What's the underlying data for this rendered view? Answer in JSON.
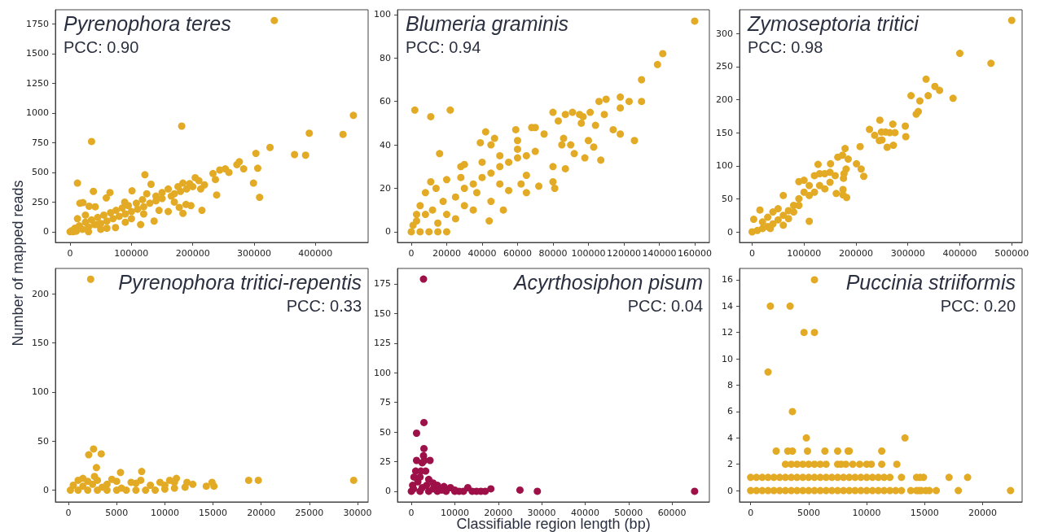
{
  "chart_data": [
    {
      "type": "scatter",
      "title": "Pyrenophora teres",
      "annotations": [
        "PCC: 0.90"
      ],
      "ylabel": "Number of mapped reads",
      "marker": "circle",
      "xlim": [
        -24000,
        486000
      ],
      "ylim": [
        -90,
        1870
      ],
      "xticks": [
        0,
        100000,
        200000,
        300000,
        400000
      ],
      "yticks": [
        0,
        250,
        500,
        750,
        1000,
        1250,
        1500,
        1750
      ],
      "series": [
        {
          "color": "#e3ab25",
          "x": [
            333000,
            182000,
            35000,
            462000,
            390000,
            445000,
            326000,
            303000,
            366000,
            384000,
            276000,
            272000,
            306000,
            283000,
            259000,
            253000,
            244000,
            233000,
            237000,
            299000,
            309000,
            239000,
            215000,
            184000,
            12000,
            38000,
            122000,
            132000,
            101000,
            65000,
            59000,
            16000,
            21000,
            31000,
            41000,
            89000,
            189000,
            197000,
            178000,
            213000,
            219000,
            210000,
            204000,
            195000,
            184000,
            176000,
            160000,
            150000,
            140000,
            125000,
            118000,
            108000,
            95000,
            85000,
            75000,
            66000,
            55000,
            45000,
            35000,
            25000,
            15000,
            8000,
            3000,
            0,
            5000,
            10000,
            20000,
            30000,
            40000,
            50000,
            60000,
            70000,
            80000,
            90000,
            100000,
            110000,
            120000,
            130000,
            140000,
            150000,
            165000,
            170000,
            180000,
            190000,
            200000,
            115000,
            137000,
            74000,
            50000,
            100000,
            160000,
            170000,
            145000,
            90000,
            120000,
            30000,
            60000,
            12000,
            25000,
            45000
          ],
          "values": [
            1780,
            890,
            760,
            980,
            830,
            820,
            710,
            660,
            650,
            645,
            590,
            565,
            535,
            530,
            500,
            530,
            520,
            490,
            440,
            410,
            290,
            310,
            180,
            155,
            410,
            340,
            480,
            400,
            345,
            330,
            285,
            240,
            245,
            215,
            210,
            250,
            230,
            220,
            205,
            360,
            395,
            430,
            455,
            405,
            410,
            380,
            360,
            330,
            300,
            320,
            270,
            240,
            220,
            200,
            180,
            160,
            140,
            120,
            100,
            80,
            50,
            30,
            10,
            0,
            0,
            5,
            20,
            40,
            60,
            70,
            90,
            110,
            130,
            150,
            170,
            190,
            210,
            240,
            260,
            280,
            300,
            320,
            340,
            360,
            380,
            60,
            90,
            35,
            20,
            110,
            170,
            250,
            180,
            80,
            150,
            0,
            30,
            110,
            140,
            60
          ]
        }
      ]
    },
    {
      "type": "scatter",
      "title": "Blumeria graminis",
      "annotations": [
        "PCC: 0.94"
      ],
      "marker": "circle",
      "xlim": [
        -7800,
        168300
      ],
      "ylim": [
        -4.9,
        102.2
      ],
      "xticks": [
        0,
        20000,
        40000,
        60000,
        80000,
        100000,
        120000,
        140000,
        160000
      ],
      "yticks": [
        0,
        20,
        40,
        60,
        80,
        100
      ],
      "series": [
        {
          "color": "#e3ab25",
          "x": [
            160000,
            142000,
            139000,
            130000,
            118000,
            110000,
            106000,
            123000,
            130000,
            118000,
            2000,
            22000,
            11000,
            16000,
            80000,
            91000,
            101000,
            95000,
            87000,
            109000,
            97000,
            83000,
            104000,
            96000,
            114000,
            118000,
            126000,
            107000,
            98000,
            92000,
            85000,
            81000,
            80000,
            72000,
            65000,
            68000,
            70000,
            59000,
            42000,
            47000,
            39000,
            60000,
            75000,
            86000,
            100000,
            103000,
            90000,
            80000,
            87000,
            60000,
            50000,
            40000,
            30000,
            28000,
            20000,
            11000,
            14000,
            8000,
            5000,
            3000,
            1000,
            0,
            5000,
            10000,
            15000,
            20000,
            3000,
            8000,
            12000,
            18000,
            25000,
            30000,
            35000,
            40000,
            45000,
            50000,
            55000,
            60000,
            65000,
            70000,
            25000,
            35000,
            45000,
            55000,
            62000,
            37000,
            50000,
            30000,
            20000,
            44000,
            52000,
            15000,
            28000,
            45000,
            65000
          ],
          "values": [
            97,
            82,
            77,
            70,
            62,
            61,
            60,
            60,
            60,
            57,
            56,
            56,
            53,
            36,
            55,
            55,
            55,
            54,
            54,
            54,
            53,
            51,
            49,
            50,
            47,
            45,
            42,
            33,
            34,
            36,
            40,
            20,
            23,
            21,
            18,
            48,
            48,
            47,
            46,
            43,
            41,
            42,
            45,
            43,
            42,
            39,
            40,
            30,
            29,
            38,
            35,
            32,
            31,
            30,
            24,
            23,
            20,
            18,
            12,
            8,
            3,
            0,
            0,
            0,
            0,
            0,
            5,
            8,
            10,
            14,
            16,
            20,
            22,
            25,
            27,
            30,
            32,
            34,
            35,
            37,
            6,
            10,
            14,
            19,
            22,
            18,
            22,
            12,
            8,
            5,
            10,
            4,
            25,
            40,
            26
          ]
        }
      ]
    },
    {
      "type": "scatter",
      "title": "Zymoseptoria tritici",
      "annotations": [
        "PCC: 0.98"
      ],
      "marker": "circle",
      "xlim": [
        -24300,
        520000
      ],
      "ylim": [
        -16,
        336
      ],
      "xticks": [
        0,
        100000,
        200000,
        300000,
        400000,
        500000
      ],
      "yticks": [
        0,
        50,
        100,
        150,
        200,
        250,
        300
      ],
      "series": [
        {
          "color": "#e3ab25",
          "x": [
            500000,
            400000,
            460000,
            335000,
            352000,
            361000,
            306000,
            339000,
            323000,
            387000,
            320000,
            316000,
            246000,
            271000,
            295000,
            226000,
            236000,
            249000,
            257000,
            265000,
            275000,
            296000,
            250000,
            245000,
            260000,
            272000,
            208000,
            179000,
            165000,
            174000,
            185000,
            201000,
            210000,
            215000,
            127000,
            151000,
            181000,
            177000,
            176000,
            162000,
            175000,
            175000,
            182000,
            110000,
            15000,
            3000,
            0,
            10000,
            20000,
            30000,
            40000,
            50000,
            60000,
            70000,
            80000,
            90000,
            100000,
            110000,
            120000,
            130000,
            140000,
            150000,
            160000,
            100000,
            90000,
            60000,
            70000,
            80000,
            50000,
            40000,
            30000,
            20000,
            35000,
            60000,
            90000,
            110000,
            130000,
            120000,
            140000,
            150000
          ],
          "values": [
            320,
            270,
            255,
            231,
            220,
            214,
            206,
            206,
            198,
            202,
            182,
            178,
            169,
            163,
            160,
            155,
            146,
            151,
            151,
            150,
            150,
            144,
            139,
            138,
            128,
            131,
            129,
            126,
            113,
            116,
            110,
            103,
            95,
            84,
            102,
            103,
            95,
            88,
            81,
            58,
            64,
            56,
            52,
            16,
            33,
            19,
            0,
            2,
            5,
            8,
            12,
            18,
            25,
            32,
            40,
            50,
            60,
            70,
            85,
            88,
            88,
            90,
            85,
            78,
            76,
            55,
            20,
            30,
            35,
            30,
            22,
            15,
            5,
            10,
            40,
            55,
            70,
            60,
            65,
            75
          ]
        }
      ]
    },
    {
      "type": "scatter",
      "title": "Pyrenophora tritici-repentis",
      "annotations": [
        "PCC: 0.33"
      ],
      "marker": "circle",
      "xlim": [
        -1360,
        31100
      ],
      "ylim": [
        -12,
        226
      ],
      "xticks": [
        0,
        5000,
        10000,
        15000,
        20000,
        25000,
        30000
      ],
      "yticks": [
        0,
        50,
        100,
        150,
        200
      ],
      "series": [
        {
          "color": "#e3ab25",
          "x": [
            2300,
            2600,
            2100,
            3400,
            2900,
            5400,
            7600,
            29600,
            19700,
            18700,
            15100,
            14900,
            14300,
            12900,
            12300,
            11200,
            10500,
            10000,
            7000,
            5000,
            4500,
            4000,
            3000,
            2700,
            1500,
            1000,
            500,
            200,
            1000,
            2000,
            3000,
            4000,
            5000,
            6000,
            7000,
            8000,
            9000,
            10000,
            11000,
            12100,
            1500,
            2500,
            3500,
            6500,
            8500,
            9500,
            11000,
            7500,
            5500,
            2000
          ],
          "values": [
            215,
            42,
            36,
            37,
            23,
            18,
            19,
            10,
            10,
            10,
            4,
            8,
            4,
            6,
            8,
            12,
            10,
            5,
            7,
            9,
            11,
            6,
            10,
            14,
            12,
            10,
            5,
            0,
            0,
            0,
            0,
            0,
            0,
            0,
            0,
            0,
            0,
            1,
            2,
            3,
            4,
            6,
            3,
            8,
            5,
            8,
            8,
            10,
            2,
            9
          ]
        }
      ]
    },
    {
      "type": "scatter",
      "title": "Acyrthosiphon pisum",
      "annotations": [
        "PCC: 0.04"
      ],
      "xlabel": "Classifiable region length (bp)",
      "marker": "circle",
      "xlim": [
        -3200,
        68600
      ],
      "ylim": [
        -9,
        188
      ],
      "xticks": [
        0,
        10000,
        20000,
        30000,
        40000,
        50000,
        60000
      ],
      "yticks": [
        0,
        25,
        50,
        75,
        100,
        125,
        150,
        175
      ],
      "series": [
        {
          "color": "#9e1048",
          "x": [
            2800,
            2900,
            1200,
            2900,
            2800,
            1200,
            2500,
            4300,
            3000,
            1000,
            2200,
            3300,
            600,
            2000,
            4000,
            5000,
            6000,
            7500,
            9000,
            13000,
            18300,
            25000,
            29000,
            65200,
            17000,
            16000,
            15000,
            14000,
            12000,
            11000,
            10000,
            8000,
            6000,
            4000,
            2000,
            0,
            300,
            1500,
            3500,
            5000,
            7000,
            10000,
            500,
            2500
          ],
          "values": [
            179,
            58,
            49,
            36,
            30,
            26,
            24,
            26,
            26,
            17,
            17,
            17,
            12,
            12,
            10,
            7,
            5,
            4,
            3,
            3,
            2,
            1,
            0,
            0,
            0,
            0,
            0,
            0,
            0,
            0,
            0,
            0,
            0,
            0,
            0,
            0,
            5,
            8,
            5,
            2,
            1,
            1,
            2,
            3
          ]
        }
      ]
    },
    {
      "type": "scatter",
      "title": "Puccinia striiformis",
      "annotations": [
        "PCC: 0.20"
      ],
      "marker": "circle",
      "xlim": [
        -960,
        23400
      ],
      "ylim": [
        -0.86,
        16.86
      ],
      "xticks": [
        0,
        5000,
        10000,
        15000,
        20000
      ],
      "yticks": [
        0,
        2,
        4,
        6,
        8,
        10,
        12,
        14,
        16
      ],
      "series": [
        {
          "color": "#e3ab25",
          "x": [
            5500,
            1700,
            3400,
            4600,
            5500,
            1500,
            3600,
            4800,
            13300,
            2200,
            3200,
            3600,
            4900,
            6400,
            7500,
            8400,
            8500,
            11300,
            3000,
            3500,
            4000,
            4500,
            5000,
            5500,
            6000,
            6500,
            7500,
            7800,
            8200,
            8800,
            9400,
            10000,
            10400,
            11300,
            12600,
            0,
            500,
            1000,
            1500,
            2000,
            2500,
            3000,
            3500,
            4000,
            4500,
            5000,
            5500,
            6000,
            6500,
            7000,
            7500,
            8000,
            8500,
            9000,
            9500,
            10000,
            10500,
            11000,
            11500,
            12000,
            13000,
            14300,
            14600,
            14900,
            17100,
            18700,
            0,
            500,
            1000,
            1500,
            2000,
            2500,
            3000,
            3500,
            4000,
            4500,
            5000,
            5500,
            6000,
            6500,
            7000,
            7500,
            8000,
            8500,
            9000,
            9500,
            10000,
            10500,
            11000,
            11500,
            12000,
            12500,
            13000,
            13800,
            14300,
            14500,
            14700,
            15100,
            15400,
            16000,
            17900,
            22400
          ],
          "values": [
            16,
            14,
            14,
            12,
            12,
            9,
            6,
            4,
            4,
            3,
            3,
            3,
            3,
            3,
            3,
            3,
            3,
            3,
            2,
            2,
            2,
            2,
            2,
            2,
            2,
            2,
            2,
            2,
            2,
            2,
            2,
            2,
            2,
            2,
            2,
            1,
            1,
            1,
            1,
            1,
            1,
            1,
            1,
            1,
            1,
            1,
            1,
            1,
            1,
            1,
            1,
            1,
            1,
            1,
            1,
            1,
            1,
            1,
            1,
            1,
            1,
            1,
            1,
            1,
            1,
            1,
            0,
            0,
            0,
            0,
            0,
            0,
            0,
            0,
            0,
            0,
            0,
            0,
            0,
            0,
            0,
            0,
            0,
            0,
            0,
            0,
            0,
            0,
            0,
            0,
            0,
            0,
            0,
            0,
            0,
            0,
            0,
            0,
            0,
            0,
            0,
            0
          ]
        }
      ]
    }
  ]
}
